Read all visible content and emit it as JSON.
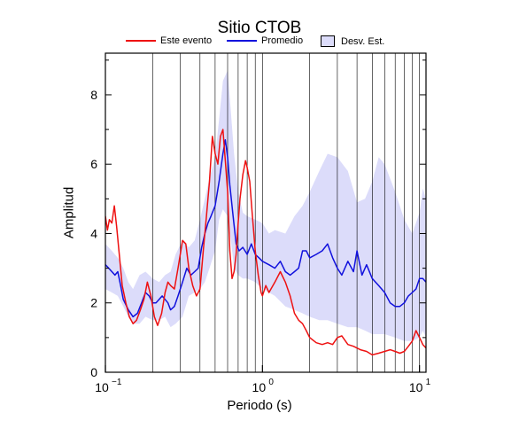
{
  "chart_data": {
    "type": "line",
    "title": "Sitio CTOB",
    "xlabel": "Periodo (s)",
    "ylabel": "Amplitud",
    "x_scale": "log",
    "xlim": [
      0.1,
      11
    ],
    "ylim": [
      0,
      9.2
    ],
    "x_ticks": [
      {
        "value": 0.1,
        "base": "10",
        "exp": "−1"
      },
      {
        "value": 1,
        "base": "10",
        "exp": "0"
      },
      {
        "value": 10,
        "base": "10",
        "exp": "1"
      }
    ],
    "y_ticks": [
      0,
      2,
      4,
      6,
      8
    ],
    "grid": "vertical log-decade minor lines",
    "legend_position": "top-center",
    "legend": {
      "event": "Este evento",
      "mean": "Promedio",
      "std": "Desv. Est."
    },
    "colors": {
      "event": "#ee1111",
      "mean": "#1111dd",
      "std_fill": "#dcdcfa"
    },
    "series": [
      {
        "name": "Este evento",
        "x": [
          0.1,
          0.103,
          0.106,
          0.11,
          0.114,
          0.118,
          0.122,
          0.128,
          0.135,
          0.142,
          0.15,
          0.158,
          0.167,
          0.176,
          0.185,
          0.195,
          0.205,
          0.215,
          0.228,
          0.24,
          0.25,
          0.26,
          0.275,
          0.29,
          0.31,
          0.325,
          0.34,
          0.36,
          0.38,
          0.4,
          0.42,
          0.44,
          0.46,
          0.48,
          0.5,
          0.52,
          0.54,
          0.56,
          0.58,
          0.6,
          0.62,
          0.64,
          0.66,
          0.68,
          0.7,
          0.72,
          0.75,
          0.78,
          0.8,
          0.83,
          0.86,
          0.9,
          0.94,
          0.98,
          1.0,
          1.05,
          1.1,
          1.2,
          1.3,
          1.4,
          1.5,
          1.6,
          1.7,
          1.8,
          1.9,
          2.0,
          2.2,
          2.4,
          2.6,
          2.8,
          3.0,
          3.2,
          3.5,
          3.8,
          4.2,
          4.6,
          5.0,
          5.5,
          6.0,
          6.5,
          7.0,
          7.5,
          8.0,
          8.5,
          9.0,
          9.5,
          10.0,
          10.5,
          11.0
        ],
        "values": [
          4.5,
          4.1,
          4.4,
          4.3,
          4.8,
          4.2,
          3.5,
          2.5,
          2.0,
          1.6,
          1.4,
          1.5,
          1.8,
          2.1,
          2.6,
          2.2,
          1.6,
          1.35,
          1.7,
          2.3,
          2.6,
          2.5,
          2.4,
          3.0,
          3.8,
          3.7,
          3.0,
          2.5,
          2.2,
          2.4,
          3.5,
          4.5,
          5.5,
          6.8,
          6.3,
          6.0,
          6.8,
          7.0,
          6.1,
          5.2,
          3.5,
          2.7,
          2.9,
          3.4,
          4.3,
          5.0,
          5.7,
          6.1,
          5.9,
          5.5,
          4.6,
          3.5,
          2.8,
          2.3,
          2.2,
          2.5,
          2.3,
          2.6,
          2.9,
          2.6,
          2.2,
          1.7,
          1.5,
          1.4,
          1.2,
          1.0,
          0.85,
          0.8,
          0.85,
          0.8,
          1.0,
          1.05,
          0.8,
          0.75,
          0.65,
          0.6,
          0.5,
          0.55,
          0.6,
          0.65,
          0.6,
          0.55,
          0.6,
          0.75,
          0.9,
          1.2,
          1.0,
          0.8,
          0.7
        ]
      },
      {
        "name": "Promedio",
        "x": [
          0.1,
          0.105,
          0.11,
          0.115,
          0.12,
          0.125,
          0.13,
          0.14,
          0.15,
          0.16,
          0.17,
          0.18,
          0.19,
          0.2,
          0.21,
          0.22,
          0.23,
          0.24,
          0.25,
          0.26,
          0.275,
          0.29,
          0.31,
          0.33,
          0.35,
          0.37,
          0.39,
          0.41,
          0.43,
          0.45,
          0.47,
          0.5,
          0.53,
          0.56,
          0.58,
          0.6,
          0.62,
          0.65,
          0.68,
          0.71,
          0.75,
          0.8,
          0.85,
          0.9,
          0.95,
          1.0,
          1.1,
          1.2,
          1.3,
          1.4,
          1.5,
          1.6,
          1.7,
          1.8,
          1.9,
          2.0,
          2.2,
          2.4,
          2.6,
          2.8,
          3.0,
          3.2,
          3.5,
          3.8,
          4.0,
          4.3,
          4.6,
          5.0,
          5.5,
          6.0,
          6.5,
          7.0,
          7.5,
          8.0,
          8.5,
          9.0,
          9.5,
          10.0,
          10.5,
          11.0
        ],
        "values": [
          3.1,
          3.0,
          2.9,
          2.8,
          2.9,
          2.5,
          2.1,
          1.8,
          1.6,
          1.7,
          2.0,
          2.3,
          2.2,
          2.0,
          2.0,
          2.1,
          2.2,
          2.1,
          2.0,
          1.8,
          1.9,
          2.2,
          2.6,
          3.0,
          2.8,
          2.9,
          3.0,
          3.6,
          4.0,
          4.3,
          4.5,
          4.8,
          5.5,
          6.3,
          6.7,
          6.2,
          5.4,
          4.5,
          3.7,
          3.5,
          3.6,
          3.4,
          3.7,
          3.4,
          3.3,
          3.2,
          3.1,
          3.0,
          3.2,
          2.9,
          2.8,
          2.9,
          3.0,
          3.5,
          3.5,
          3.3,
          3.4,
          3.5,
          3.7,
          3.3,
          3.0,
          2.8,
          3.2,
          2.9,
          3.5,
          2.8,
          3.1,
          2.7,
          2.5,
          2.3,
          2.0,
          1.9,
          1.9,
          2.0,
          2.2,
          2.3,
          2.4,
          2.7,
          2.7,
          2.6
        ]
      },
      {
        "name": "Desv. Est.",
        "x": [
          0.1,
          0.11,
          0.12,
          0.13,
          0.14,
          0.15,
          0.165,
          0.18,
          0.2,
          0.22,
          0.24,
          0.26,
          0.28,
          0.31,
          0.34,
          0.37,
          0.4,
          0.43,
          0.46,
          0.5,
          0.53,
          0.56,
          0.6,
          0.63,
          0.66,
          0.7,
          0.75,
          0.8,
          0.9,
          1.0,
          1.1,
          1.2,
          1.4,
          1.6,
          1.8,
          2.0,
          2.3,
          2.6,
          3.0,
          3.5,
          4.0,
          4.5,
          5.0,
          5.5,
          6.0,
          7.0,
          8.0,
          9.0,
          10.0,
          10.5,
          11.0
        ],
        "upper": [
          3.7,
          3.5,
          3.3,
          3.0,
          2.6,
          2.4,
          2.8,
          2.9,
          2.7,
          2.6,
          2.8,
          2.9,
          3.4,
          3.8,
          3.6,
          3.8,
          4.4,
          5.0,
          5.6,
          6.2,
          7.3,
          8.4,
          8.7,
          7.5,
          6.3,
          5.2,
          4.6,
          4.5,
          4.4,
          4.3,
          4.0,
          4.1,
          4.0,
          4.5,
          4.8,
          5.2,
          5.8,
          6.3,
          6.2,
          5.8,
          4.9,
          5.0,
          5.5,
          6.2,
          6.0,
          5.2,
          4.4,
          4.0,
          4.6,
          5.3,
          5.0
        ],
        "lower": [
          2.4,
          2.3,
          2.2,
          1.9,
          1.6,
          1.4,
          1.4,
          1.6,
          1.5,
          1.5,
          1.6,
          1.3,
          1.4,
          1.6,
          2.2,
          2.3,
          2.4,
          2.6,
          3.0,
          3.5,
          4.4,
          4.7,
          4.5,
          3.8,
          3.0,
          2.8,
          2.7,
          2.7,
          2.6,
          2.4,
          2.3,
          2.2,
          1.9,
          1.8,
          1.7,
          1.6,
          1.5,
          1.5,
          1.4,
          1.3,
          1.3,
          1.2,
          1.1,
          1.1,
          1.1,
          1.0,
          0.9,
          0.9,
          1.0,
          1.2,
          1.0
        ]
      }
    ]
  }
}
